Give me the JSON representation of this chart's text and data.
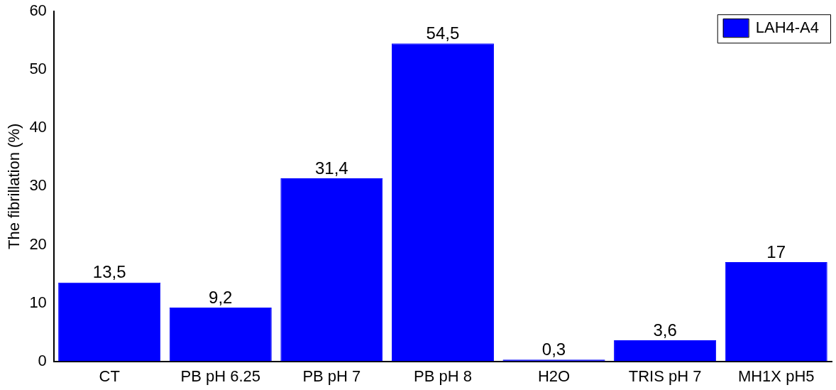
{
  "chart_data": {
    "type": "bar",
    "ylabel": "The fibrillation (%)",
    "categories": [
      "CT",
      "PB pH 6.25",
      "PB pH 7",
      "PB pH 8",
      "H2O",
      "TRIS pH 7",
      "MH1X pH5"
    ],
    "series": [
      {
        "name": "LAH4-A4",
        "color": "#0000ff",
        "values": [
          13.5,
          9.2,
          31.4,
          54.5,
          0.3,
          3.6,
          17
        ],
        "value_labels": [
          "13,5",
          "9,2",
          "31,4",
          "54,5",
          "0,3",
          "3,6",
          "17"
        ]
      }
    ],
    "ylim": [
      0,
      60
    ],
    "yticks": [
      0,
      10,
      20,
      30,
      40,
      50,
      60
    ],
    "grid": false,
    "legend": "top right"
  }
}
